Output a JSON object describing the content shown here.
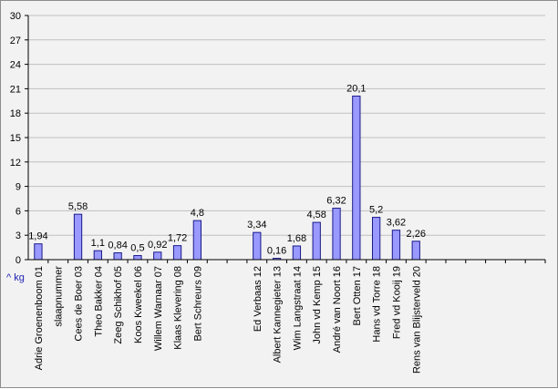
{
  "chart_data": {
    "type": "bar",
    "title": "",
    "xlabel": "",
    "ylabel": "",
    "unit_label": "^ kg",
    "ylim": [
      0,
      30
    ],
    "yticks": [
      0,
      3,
      6,
      9,
      12,
      15,
      18,
      21,
      24,
      27,
      30
    ],
    "grid": true,
    "legend": "none",
    "colors": {
      "bar_fill": "#9999ff",
      "bar_stroke": "#1a1a8a",
      "plot_background": "#f2f2f2",
      "grid": "#c0c0c0",
      "axis": "#000000",
      "unit_label": "#1f1fb4"
    },
    "categories": [
      "Adrie Groenenboom 01",
      "slaapnummer",
      "Cees de Boer 03",
      "Theo Bakker 04",
      "Zeeg Schikhof 05",
      "Koos Kweekel 06",
      "Willem Warnaar 07",
      "Klaas Klevering 08",
      "Bert Schreurs 09",
      "",
      "",
      "Ed Verbaas 12",
      "Albert Kannegieter 13",
      "Wim Langstraat 14",
      "John vd Kemp 15",
      "André van Noort 16",
      "Bert Otten 17",
      "Hans vd Torre 18",
      "Fred vd Kooij 19",
      "Rens van Blijsterveld 20",
      "",
      "",
      "",
      "",
      "",
      ""
    ],
    "values": [
      1.94,
      null,
      5.58,
      1.1,
      0.84,
      0.5,
      0.92,
      1.72,
      4.8,
      null,
      null,
      3.34,
      0.16,
      1.68,
      4.58,
      6.32,
      20.1,
      5.2,
      3.62,
      2.26,
      null,
      null,
      null,
      null,
      null,
      null
    ],
    "value_labels": [
      "1,94",
      "",
      "5,58",
      "1,1",
      "0,84",
      "0,5",
      "0,92",
      "1,72",
      "4,8",
      "",
      "",
      "3,34",
      "0,16",
      "1,68",
      "4,58",
      "6,32",
      "20,1",
      "5,2",
      "3,62",
      "2,26",
      "",
      "",
      "",
      "",
      "",
      ""
    ]
  }
}
